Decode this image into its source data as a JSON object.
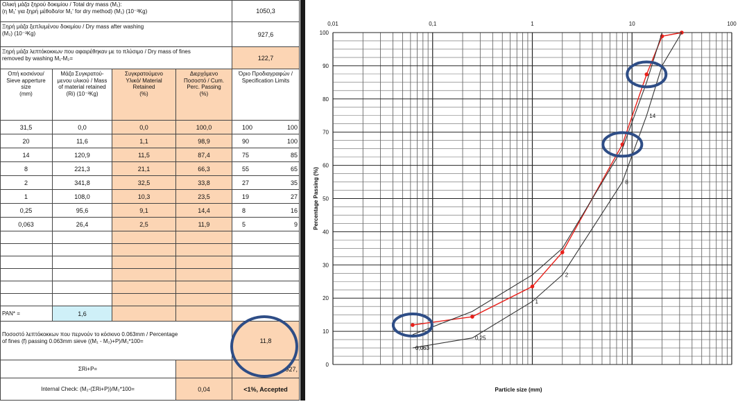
{
  "table": {
    "header_rows": [
      {
        "label_lines": [
          "Ολική μάζα ξηρού δοκιμίου / Total dry mass (M₁):",
          "(η M₁' για ξηρή μέθοδο/or M₁' for dry method)      (M₁) (10⁻³Kg)"
        ],
        "value": "1050,3"
      },
      {
        "label_lines": [
          "Ξηρή μάζα ξεπλυμένου δοκιμίου / Dry mass after washing",
          "(M₂) (10⁻³Kg)"
        ],
        "value": "927,6"
      },
      {
        "label_lines": [
          "Ξηρή μάζα λεπτόκοκκων που αφαιρέθηκαν με το πλύσιμο / Dry mass of fines",
          "removed by washing M₁-M₂="
        ],
        "value": "122,7"
      }
    ],
    "col_headers": [
      [
        "Οπή κοσκίνου/",
        "Sieve apperture",
        "size",
        "",
        "(mm)"
      ],
      [
        "Μάζα Συγκρατού-",
        "μενου υλικού / Mass",
        "of material retained",
        "(Ri) (10⁻³Kg)"
      ],
      [
        "Συγκρατούμενο",
        "Υλικό/ Material",
        "Retained",
        "",
        "(%)"
      ],
      [
        "Διερχόμενο",
        "Ποσοστό / Cum.",
        "Perc. Passing",
        "",
        "(%)"
      ],
      [
        "Όριο Προδιαγραφών /",
        "Specification Limits"
      ]
    ],
    "rows": [
      {
        "size": "31,5",
        "mass": "0,0",
        "retained": "0,0",
        "passing": "100,0",
        "lim_low": "100",
        "lim_high": "100"
      },
      {
        "size": "20",
        "mass": "11,6",
        "retained": "1,1",
        "passing": "98,9",
        "lim_low": "90",
        "lim_high": "100"
      },
      {
        "size": "14",
        "mass": "120,9",
        "retained": "11,5",
        "passing": "87,4",
        "lim_low": "75",
        "lim_high": "85"
      },
      {
        "size": "8",
        "mass": "221,3",
        "retained": "21,1",
        "passing": "66,3",
        "lim_low": "55",
        "lim_high": "65"
      },
      {
        "size": "2",
        "mass": "341,8",
        "retained": "32,5",
        "passing": "33,8",
        "lim_low": "27",
        "lim_high": "35"
      },
      {
        "size": "1",
        "mass": "108,0",
        "retained": "10,3",
        "passing": "23,5",
        "lim_low": "19",
        "lim_high": "27"
      },
      {
        "size": "0,25",
        "mass": "95,6",
        "retained": "9,1",
        "passing": "14,4",
        "lim_low": "8",
        "lim_high": "16"
      },
      {
        "size": "0,063",
        "mass": "26,4",
        "retained": "2,5",
        "passing": "11,9",
        "lim_low": "5",
        "lim_high": "9"
      }
    ],
    "pan_label": "PAN* =",
    "pan_value": "1,6",
    "fines_label_lines": [
      "Ποσοστό λεπτόκοκκων που περνούν το κόσκινο 0.063mm / Percentage",
      "of fines (f) passing 0.063mm sieve          ((M₁ - M₂)+P)/M₁*100="
    ],
    "fines_value": "11,8",
    "sum_label": "ΣRi+P=",
    "sum_value": "927,",
    "check_label": "Internal Check:   (M₂-(ΣRi+P))/M₂*100=",
    "check_value": "0,04",
    "check_status": "<1%, Accepted"
  },
  "colors": {
    "orange": "#fcd5b4",
    "cyan": "#cff0f8",
    "highlight_circle": "#2e4d86",
    "series_red": "#e8201a",
    "limit_line": "#333333"
  },
  "chart_data": {
    "type": "line",
    "xscale": "log",
    "xlim": [
      0.01,
      100
    ],
    "ylim": [
      0,
      100
    ],
    "x_tick_labels": [
      "0,01",
      "0,1",
      "1",
      "10",
      "100"
    ],
    "y_tick_labels": [
      "0",
      "10",
      "20",
      "30",
      "40",
      "50",
      "60",
      "70",
      "80",
      "90",
      "100"
    ],
    "xlabel": "Particle size (mm)",
    "ylabel": "Percentage Passing (%)",
    "grid": true,
    "series": [
      {
        "x": [
          0.063,
          0.25,
          1,
          2,
          8,
          14,
          20,
          31.5
        ],
        "y": [
          11.9,
          14.4,
          23.5,
          33.8,
          66.3,
          87.4,
          98.9,
          100
        ],
        "style": "red-markers"
      },
      {
        "x": [
          0.063,
          0.25,
          1,
          2,
          8,
          14,
          20,
          31.5
        ],
        "y": [
          9,
          16,
          27,
          35,
          65,
          85,
          100,
          100
        ],
        "style": "upper-limit"
      },
      {
        "x": [
          0.063,
          0.25,
          1,
          2,
          8,
          14,
          20,
          31.5
        ],
        "y": [
          5,
          8,
          19,
          27,
          55,
          75,
          90,
          100
        ],
        "style": "lower-limit"
      }
    ],
    "annotations": [
      "0,063",
      "0,25",
      "1",
      "2",
      "8",
      "14"
    ]
  }
}
